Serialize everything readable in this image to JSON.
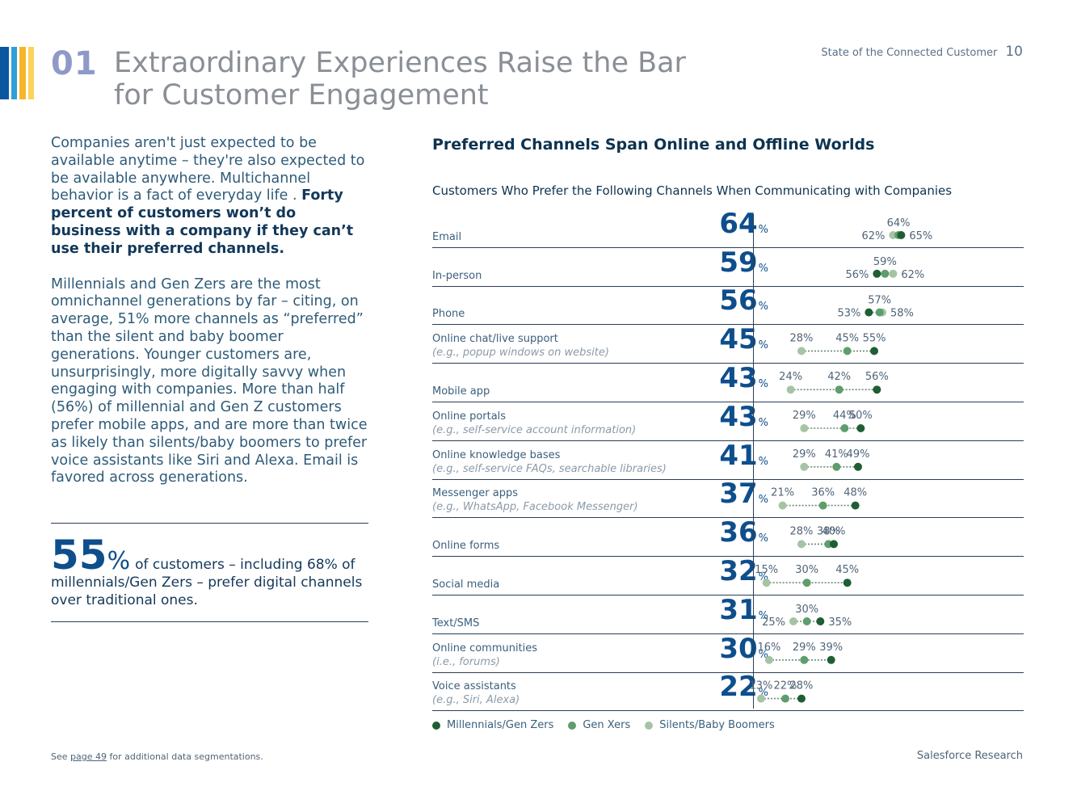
{
  "header": {
    "section_number": "01",
    "title_line1": "Extraordinary Experiences Raise the Bar",
    "title_line2": "for Customer Engagement",
    "report_name": "State of the Connected Customer",
    "page_number": "10"
  },
  "stripe_colors": [
    "#0a56a0",
    "#2f9fd9",
    "#f6b52a",
    "#fbd35a"
  ],
  "intro": {
    "p1_plain": "Companies aren't just expected to be available anytime – they're also expected to be available anywhere. Multichannel behavior is a fact of everyday life . ",
    "p1_bold": "Forty percent of customers won’t do business with a company if they can’t use their preferred channels.",
    "p2": "Millennials and Gen Zers are the most omnichannel generations by far – citing, on average, 51% more channels as “preferred” than the silent and baby boomer generations. Younger customers are, unsurprisingly, more digitally savvy when engaging with companies. More than half (56%) of millennial and Gen Z customers prefer mobile apps, and are more than twice as likely than silents/baby boomers to prefer voice assistants like Siri and Alexa. Email is favored across generations."
  },
  "callout": {
    "number": "55",
    "percent_sign": "%",
    "text_line1": "of customers – including 68% of",
    "text_line2": "millennials/Gen Zers – prefer digital channels",
    "text_line3": "over traditional ones."
  },
  "chart": {
    "title": "Preferred Channels Span Online and Offline Worlds",
    "subtitle": "Customers Who Prefer the Following Channels When Communicating with Companies"
  },
  "legend": {
    "millennials": "Millennials/Gen Zers",
    "genx": "Gen Xers",
    "silents": "Silents/Baby Boomers"
  },
  "colors": {
    "millennials": "#1f5e34",
    "genx": "#5e9d6c",
    "silents": "#a6c4a4",
    "value_blue": "#0e4e8c"
  },
  "chart_data": {
    "type": "dot",
    "title": "Preferred Channels Span Online and Offline Worlds",
    "subtitle": "Customers Who Prefer the Following Channels When Communicating with Companies",
    "value_suffix": "%",
    "xlim": [
      0,
      100
    ],
    "series_names": [
      "Millennials/Gen Zers",
      "Gen Xers",
      "Silents/Baby Boomers"
    ],
    "rows": [
      {
        "label": "Email",
        "note": "",
        "total": 64,
        "millennials": 65,
        "genx": 64,
        "silents": 62
      },
      {
        "label": "In-person",
        "note": "",
        "total": 59,
        "millennials": 56,
        "genx": 59,
        "silents": 62
      },
      {
        "label": "Phone",
        "note": "",
        "total": 56,
        "millennials": 53,
        "genx": 57,
        "silents": 58
      },
      {
        "label": "Online chat/live support",
        "note": "(e.g., popup windows on website)",
        "total": 45,
        "millennials": 55,
        "genx": 45,
        "silents": 28
      },
      {
        "label": "Mobile app",
        "note": "",
        "total": 43,
        "millennials": 56,
        "genx": 42,
        "silents": 24
      },
      {
        "label": "Online portals",
        "note": "(e.g., self-service account information)",
        "total": 43,
        "millennials": 50,
        "genx": 44,
        "silents": 29
      },
      {
        "label": "Online knowledge bases",
        "note": "(e.g., self-service FAQs, searchable libraries)",
        "total": 41,
        "millennials": 49,
        "genx": 41,
        "silents": 29
      },
      {
        "label": "Messenger apps",
        "note": "(e.g., WhatsApp, Facebook Messenger)",
        "total": 37,
        "millennials": 48,
        "genx": 36,
        "silents": 21
      },
      {
        "label": "Online forms",
        "note": "",
        "total": 36,
        "millennials": 40,
        "genx": 38,
        "silents": 28
      },
      {
        "label": "Social media",
        "note": "",
        "total": 32,
        "millennials": 45,
        "genx": 30,
        "silents": 15
      },
      {
        "label": "Text/SMS",
        "note": "",
        "total": 31,
        "millennials": 35,
        "genx": 30,
        "silents": 25
      },
      {
        "label": "Online communities",
        "note": "(i.e., forums)",
        "total": 30,
        "millennials": 39,
        "genx": 29,
        "silents": 16
      },
      {
        "label": "Voice assistants",
        "note": "(e.g., Siri, Alexa)",
        "total": 22,
        "millennials": 28,
        "genx": 22,
        "silents": 13
      }
    ]
  },
  "footer": {
    "note_prefix": "See ",
    "note_link": "page 49",
    "note_suffix": " for additional data segmentations.",
    "brand": "Salesforce Research"
  }
}
